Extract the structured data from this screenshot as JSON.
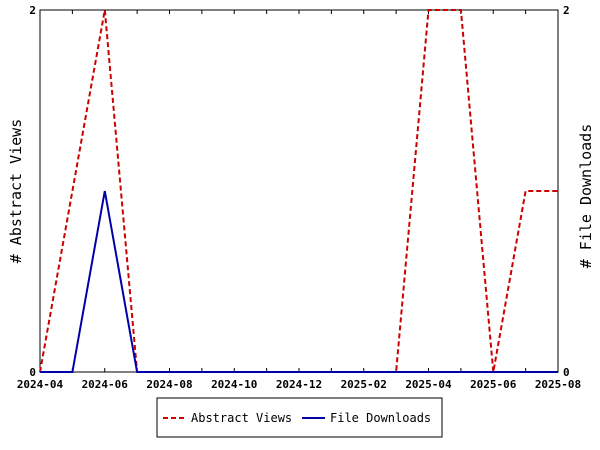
{
  "chart_data": {
    "type": "line",
    "x": [
      "2024-04",
      "2024-05",
      "2024-06",
      "2024-07",
      "2024-08",
      "2024-09",
      "2024-10",
      "2024-11",
      "2024-12",
      "2025-01",
      "2025-02",
      "2025-03",
      "2025-04",
      "2025-05",
      "2025-06",
      "2025-07",
      "2025-08"
    ],
    "x_tick_labels": [
      "2024-04",
      "2024-06",
      "2024-08",
      "2024-10",
      "2024-12",
      "2025-02",
      "2025-04",
      "2025-06",
      "2025-08"
    ],
    "series": [
      {
        "name": "Abstract Views",
        "axis": "left",
        "color": "#cc0000",
        "style": "dashed",
        "values": [
          0,
          1,
          2,
          0,
          0,
          0,
          0,
          0,
          0,
          0,
          0,
          0,
          2,
          2,
          0,
          1,
          1
        ]
      },
      {
        "name": "File Downloads",
        "axis": "right",
        "color": "#0000aa",
        "style": "solid",
        "values": [
          0,
          0,
          1,
          0,
          0,
          0,
          0,
          0,
          0,
          0,
          0,
          0,
          0,
          0,
          0,
          0,
          0
        ]
      }
    ],
    "ylabel": "# Abstract Views",
    "y2label": "# File Downloads",
    "ylim": [
      0,
      2
    ],
    "y2lim": [
      0,
      2
    ],
    "y_tick_labels": [
      "0",
      "2"
    ],
    "y2_tick_labels": [
      "0",
      "2"
    ],
    "grid": false,
    "legend_position": "bottom"
  }
}
